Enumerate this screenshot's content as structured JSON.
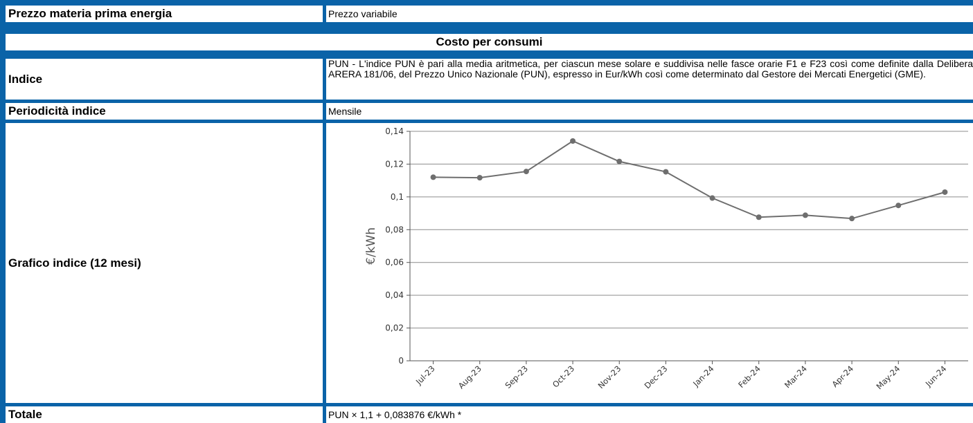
{
  "rows": {
    "prezzo": {
      "label": "Prezzo materia prima energia",
      "value": "Prezzo variabile"
    },
    "section": {
      "title": "Costo per consumi"
    },
    "indice": {
      "label": "Indice",
      "value": "PUN - L'indice PUN è pari alla media aritmetica, per ciascun mese solare e suddivisa nelle fasce orarie F1 e F23 così come definite dalla Delibera ARERA 181/06, del Prezzo Unico Nazionale (PUN), espresso in Eur/kWh così come determinato dal Gestore dei Mercati Energetici (GME)."
    },
    "periodicita": {
      "label": "Periodicità indice",
      "value": "Mensile"
    },
    "grafico": {
      "label": "Grafico indice (12 mesi)"
    },
    "totale": {
      "label": "Totale",
      "value": "PUN × 1,1 + 0,083876 €/kWh *"
    }
  },
  "chart_data": {
    "type": "line",
    "title": "",
    "xlabel": "",
    "ylabel": "€/kWh",
    "categories": [
      "Jul-23",
      "Aug-23",
      "Sep-23",
      "Oct-23",
      "Nov-23",
      "Dec-23",
      "Jan-24",
      "Feb-24",
      "Mar-24",
      "Apr-24",
      "May-24",
      "Jun-24"
    ],
    "values": [
      0.112,
      0.1117,
      0.1155,
      0.1341,
      0.1216,
      0.1153,
      0.0993,
      0.0876,
      0.0888,
      0.0868,
      0.0948,
      0.1029
    ],
    "yticks": [
      "0",
      "0,02",
      "0,04",
      "0,06",
      "0,08",
      "0,1",
      "0,12",
      "0,14"
    ],
    "ylim": [
      0,
      0.14
    ],
    "grid": true,
    "line_color": "#6e6e6e",
    "grid_color": "#8c8c8c"
  }
}
